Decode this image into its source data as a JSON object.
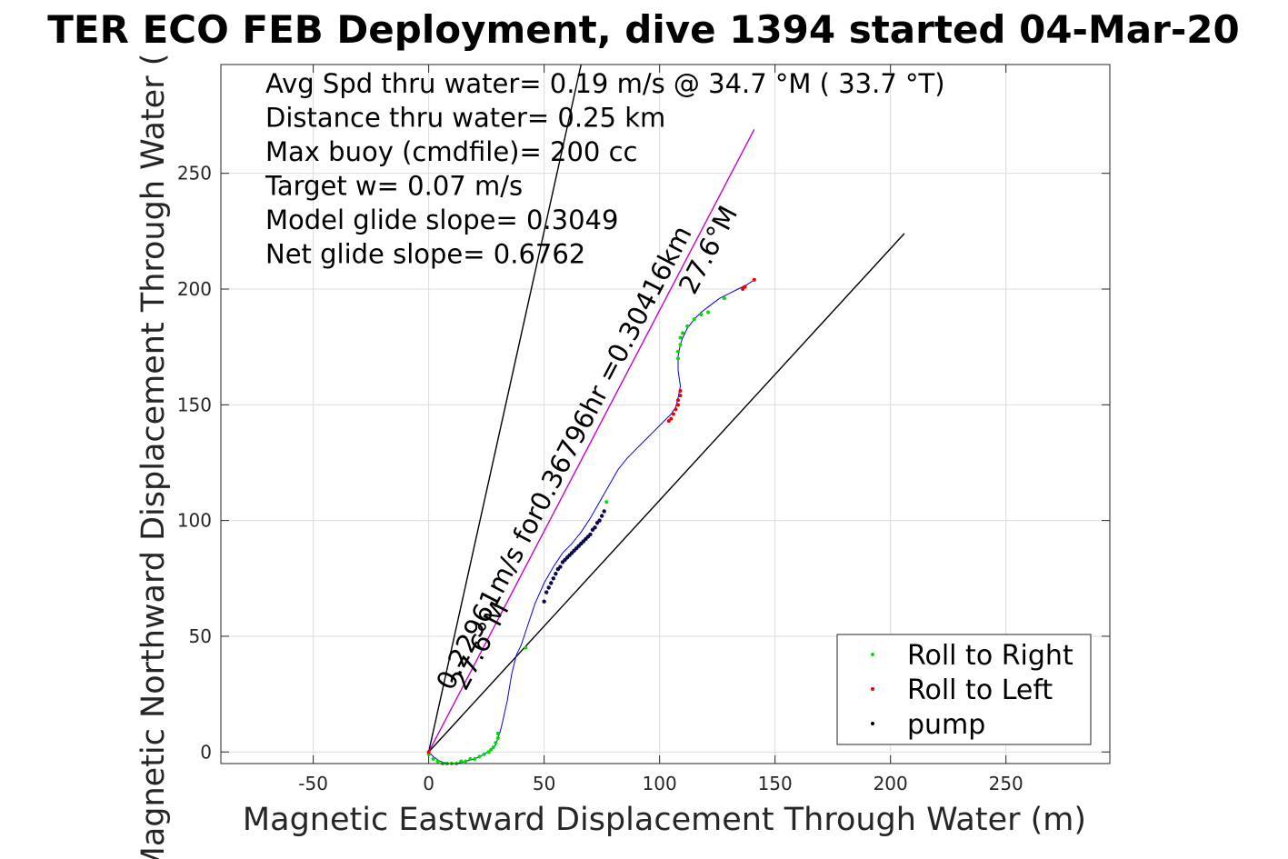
{
  "chart_data": {
    "type": "line",
    "title": "TER ECO FEB Deployment, dive 1394 started 04-Mar-20",
    "xlabel": "Magnetic Eastward Displacement Through Water (m)",
    "ylabel": "Magnetic Northward Displacement Through Water (",
    "xlim": [
      -90,
      295
    ],
    "ylim": [
      -5,
      297
    ],
    "xticks": [
      -50,
      0,
      50,
      100,
      150,
      200,
      250
    ],
    "yticks": [
      0,
      50,
      100,
      150,
      200,
      250
    ],
    "grid": true,
    "legend_position": "bottom-right",
    "info_lines": [
      "Avg Spd thru water=  0.19 m/s @  34.7 °M ( 33.7 °T)",
      "Distance thru water=  0.25 km",
      "Max buoy (cmdfile)= 200 cc",
      "Target w= 0.07 m/s",
      "Model glide slope= 0.3049",
      "Net glide slope= 0.6762"
    ],
    "annotations": [
      {
        "text": "0.22961m/s for0.36796hr =0.30416km",
        "x": 10,
        "y": 26,
        "angle_deg": 62.4
      },
      {
        "text": "27.6°M",
        "x": 16,
        "y": 26,
        "angle_deg": 62.4
      },
      {
        "text": "27.6°M",
        "x": 115,
        "y": 197,
        "angle_deg": 62.4
      }
    ],
    "series": [
      {
        "name": "Roll to Right",
        "color": "#00dd00"
      },
      {
        "name": "Roll to Left",
        "color": "#ee0000"
      },
      {
        "name": "pump",
        "color": "#000000"
      }
    ],
    "cone_lines": [
      {
        "color": "#000000",
        "x": [
          0,
          66
        ],
        "y": [
          0,
          297
        ]
      },
      {
        "color": "#000000",
        "x": [
          0,
          206
        ],
        "y": [
          0,
          224
        ]
      },
      {
        "color": "#cc00cc",
        "x": [
          0,
          141
        ],
        "y": [
          0,
          269
        ]
      }
    ],
    "track": {
      "color": "#0000ee",
      "x": [
        0,
        2,
        5,
        8,
        12,
        16,
        20,
        24,
        27,
        29,
        30,
        31,
        32,
        34,
        36,
        38,
        40,
        42,
        46,
        50,
        54,
        58,
        62,
        66,
        70,
        74,
        78,
        82,
        86,
        90,
        94,
        98,
        102,
        105,
        107,
        108,
        109,
        108,
        108,
        109,
        110,
        112,
        115,
        118,
        122,
        126,
        130,
        134,
        138,
        141
      ],
      "y": [
        0,
        -2,
        -4,
        -5,
        -5,
        -4,
        -3,
        -1,
        1,
        3,
        6,
        9,
        13,
        22,
        34,
        42,
        46,
        52,
        64,
        73,
        80,
        86,
        90,
        95,
        101,
        108,
        115,
        122,
        127,
        131,
        135,
        139,
        143,
        146,
        149,
        153,
        158,
        165,
        171,
        176,
        179,
        183,
        187,
        190,
        193,
        196,
        198,
        200,
        202,
        204
      ]
    },
    "markers": {
      "roll_right": {
        "x": [
          0,
          2,
          4,
          6,
          8,
          10,
          12,
          14,
          16,
          18,
          20,
          22,
          24,
          26,
          27,
          28,
          29,
          30,
          30,
          42,
          77,
          108,
          108,
          109,
          109,
          110,
          112,
          115,
          118,
          121,
          128
        ],
        "y": [
          -1,
          -3,
          -4,
          -5,
          -5,
          -5,
          -5,
          -4,
          -4,
          -3,
          -3,
          -2,
          -1,
          0,
          1,
          2,
          4,
          6,
          8,
          45,
          108,
          170,
          173,
          176,
          179,
          181,
          184,
          187,
          189,
          190,
          196
        ]
      },
      "roll_left": {
        "x": [
          0,
          104,
          105,
          106,
          107,
          108,
          108,
          109,
          109,
          136,
          137,
          141
        ],
        "y": [
          0,
          143,
          144,
          146,
          148,
          150,
          152,
          154,
          156,
          200,
          201,
          204
        ]
      },
      "pump": {
        "x": [
          50,
          51,
          52,
          53,
          54,
          55,
          56,
          57,
          58,
          59,
          60,
          61,
          62,
          63,
          64,
          65,
          66,
          67,
          68,
          69,
          70,
          71,
          72,
          73,
          74,
          75,
          76
        ],
        "y": [
          65,
          69,
          71,
          73,
          75,
          77,
          79,
          80,
          82,
          83,
          84,
          85,
          86,
          87,
          88,
          89,
          90,
          91,
          92,
          93,
          94,
          96,
          97,
          99,
          100,
          102,
          104
        ]
      }
    }
  }
}
